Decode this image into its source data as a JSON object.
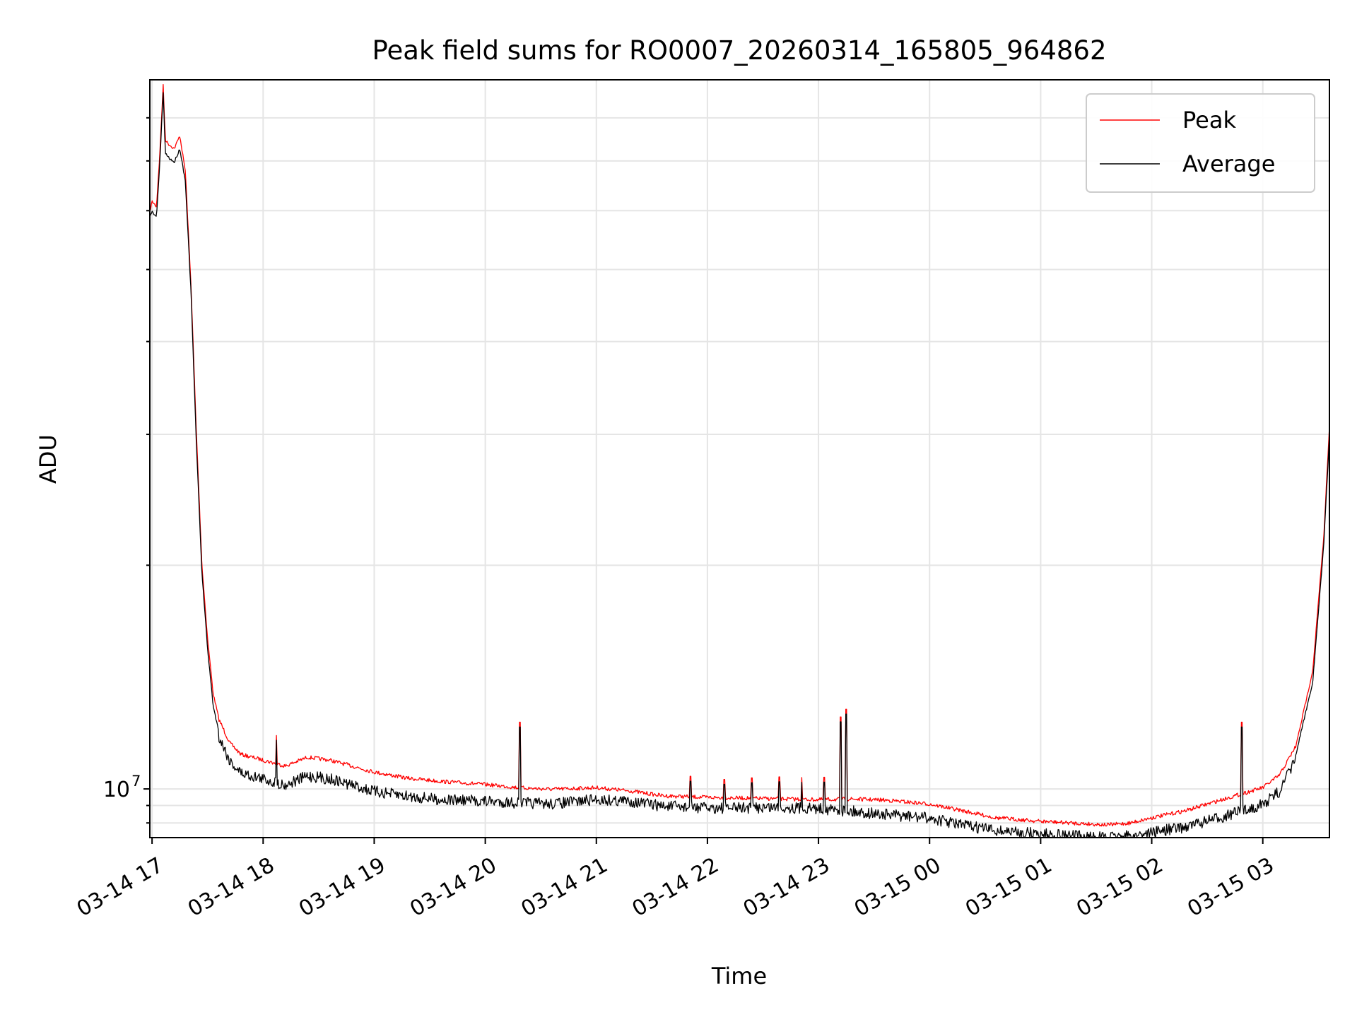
{
  "chart_data": {
    "type": "line",
    "title": "Peak field sums for RO0007_20260314_165805_964862",
    "xlabel": "Time",
    "ylabel": "ADU",
    "yscale": "log",
    "xlim_hours": [
      16.98,
      27.6
    ],
    "ylim": [
      8600000,
      90000000
    ],
    "grid": true,
    "legend_position": "top-right",
    "x_tick_labels": [
      "03-14 17",
      "03-14 18",
      "03-14 19",
      "03-14 20",
      "03-14 21",
      "03-14 22",
      "03-14 23",
      "03-15 00",
      "03-15 01",
      "03-15 02",
      "03-15 03"
    ],
    "x_tick_hours": [
      17,
      18,
      19,
      20,
      21,
      22,
      23,
      24,
      25,
      26,
      27
    ],
    "y_major_tick_label": "10",
    "y_major_tick_exponent": "7",
    "y_major_tick_value": 10000000,
    "y_minor_ticks": [
      9000000,
      9500000,
      20000000,
      30000000,
      40000000,
      50000000,
      60000000,
      70000000,
      80000000
    ],
    "series": [
      {
        "name": "Peak",
        "color": "#ff0000",
        "x_hours": [
          16.98,
          17.0,
          17.04,
          17.07,
          17.1,
          17.12,
          17.15,
          17.2,
          17.25,
          17.3,
          17.35,
          17.4,
          17.45,
          17.5,
          17.55,
          17.6,
          17.7,
          17.8,
          18.0,
          18.2,
          18.4,
          18.6,
          18.8,
          19.0,
          19.3,
          19.6,
          20.0,
          20.3,
          20.6,
          21.0,
          21.3,
          21.6,
          22.0,
          22.3,
          22.6,
          23.0,
          23.3,
          23.6,
          24.0,
          24.3,
          24.6,
          25.0,
          25.3,
          25.6,
          25.8,
          26.0,
          26.3,
          26.6,
          27.0,
          27.15,
          27.3,
          27.45,
          27.55,
          27.6
        ],
        "values": [
          60000000,
          62000000,
          61000000,
          72000000,
          89000000,
          75000000,
          74000000,
          73000000,
          76000000,
          68000000,
          48000000,
          30000000,
          20000000,
          16000000,
          13500000,
          12500000,
          11600000,
          11200000,
          11000000,
          10800000,
          11100000,
          11000000,
          10800000,
          10600000,
          10400000,
          10300000,
          10200000,
          10100000,
          10050000,
          10100000,
          10000000,
          9850000,
          9800000,
          9780000,
          9760000,
          9730000,
          9750000,
          9720000,
          9600000,
          9400000,
          9200000,
          9100000,
          9050000,
          9000000,
          9050000,
          9200000,
          9400000,
          9700000,
          10100000,
          10500000,
          11500000,
          14500000,
          22000000,
          31000000
        ]
      },
      {
        "name": "Average",
        "color": "#000000",
        "x_hours": [
          16.98,
          17.0,
          17.04,
          17.07,
          17.1,
          17.12,
          17.15,
          17.2,
          17.25,
          17.3,
          17.35,
          17.4,
          17.45,
          17.5,
          17.55,
          17.6,
          17.7,
          17.8,
          18.0,
          18.2,
          18.4,
          18.6,
          18.8,
          19.0,
          19.3,
          19.6,
          20.0,
          20.3,
          20.6,
          21.0,
          21.3,
          21.6,
          22.0,
          22.3,
          22.6,
          23.0,
          23.3,
          23.6,
          24.0,
          24.3,
          24.6,
          25.0,
          25.3,
          25.6,
          25.8,
          26.0,
          26.3,
          26.6,
          27.0,
          27.15,
          27.3,
          27.45,
          27.55,
          27.6
        ],
        "values": [
          59000000,
          60000000,
          59000000,
          70000000,
          87000000,
          72000000,
          71000000,
          70000000,
          73000000,
          66000000,
          47000000,
          29000000,
          19500000,
          15500000,
          13000000,
          12000000,
          11100000,
          10700000,
          10500000,
          10300000,
          10600000,
          10500000,
          10300000,
          10100000,
          9950000,
          9850000,
          9800000,
          9750000,
          9720000,
          9850000,
          9800000,
          9650000,
          9600000,
          9600000,
          9620000,
          9580000,
          9500000,
          9400000,
          9300000,
          9100000,
          8950000,
          8850000,
          8800000,
          8750000,
          8800000,
          8900000,
          9050000,
          9300000,
          9700000,
          10100000,
          11200000,
          14000000,
          21500000,
          30000000
        ]
      }
    ],
    "spikes": [
      {
        "x_hours": 18.12,
        "value": 11800000
      },
      {
        "x_hours": 20.31,
        "value": 12300000
      },
      {
        "x_hours": 21.85,
        "value": 10400000
      },
      {
        "x_hours": 22.15,
        "value": 10300000
      },
      {
        "x_hours": 22.4,
        "value": 10350000
      },
      {
        "x_hours": 22.65,
        "value": 10380000
      },
      {
        "x_hours": 22.85,
        "value": 10360000
      },
      {
        "x_hours": 23.05,
        "value": 10370000
      },
      {
        "x_hours": 23.2,
        "value": 12500000
      },
      {
        "x_hours": 23.25,
        "value": 12800000
      },
      {
        "x_hours": 26.81,
        "value": 12300000
      }
    ]
  }
}
